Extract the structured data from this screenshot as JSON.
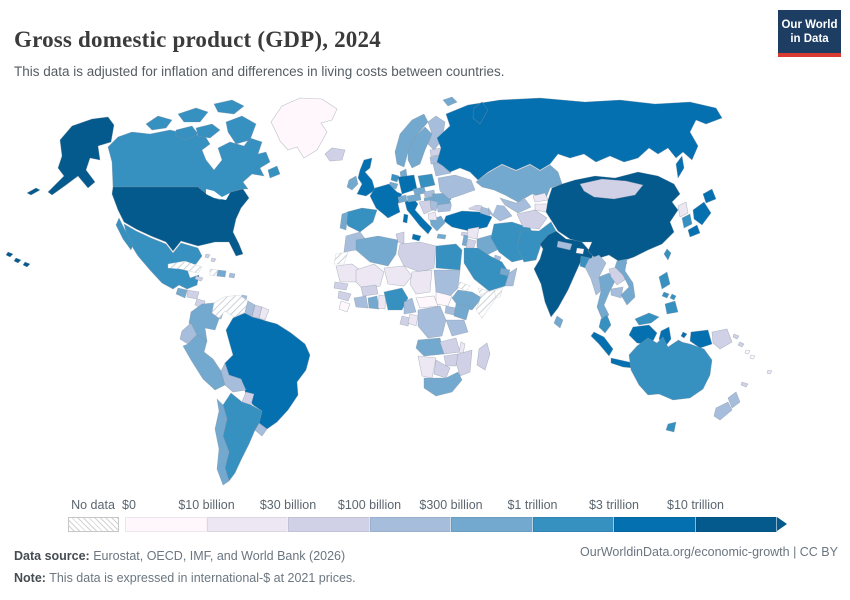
{
  "header": {
    "title": "Gross domestic product (GDP), 2024",
    "subtitle": "This data is adjusted for inflation and differences in living costs between countries.",
    "logo": {
      "line1": "Our World",
      "line2": "in Data",
      "bg_color": "#1d3d63",
      "accent_color": "#d93a32"
    }
  },
  "legend": {
    "no_data_label": "No data"
  },
  "chart_data": {
    "type": "heatmap",
    "subtype": "world-choropleth",
    "title": "Gross domestic product (GDP), 2024",
    "year": "2024",
    "unit": "international-$ at 2021 prices",
    "legend_position": "bottom",
    "open_ended_upper_bin": true,
    "bins": [
      {
        "label": "$0",
        "color": "#fff7fb"
      },
      {
        "label": "$10 billion",
        "color": "#ece7f2"
      },
      {
        "label": "$30 billion",
        "color": "#d0d1e6"
      },
      {
        "label": "$100 billion",
        "color": "#a6bddb"
      },
      {
        "label": "$300 billion",
        "color": "#74a9cf"
      },
      {
        "label": "$1 trillion",
        "color": "#3690c0"
      },
      {
        "label": "$3 trillion",
        "color": "#0570b0"
      },
      {
        "label": "$10 trillion",
        "color": "#045a8d"
      }
    ],
    "no_data_style": "hatched",
    "countries": {
      "usa": 7,
      "canada": 5,
      "greenland": 0,
      "mexico": 5,
      "guatemala": 4,
      "honduras": 2,
      "nicaragua": 2,
      "costa_rica": 3,
      "panama": 3,
      "cuba": "no_data",
      "haiti": "no_data",
      "dominican_republic": 4,
      "jamaica": 2,
      "puerto_rico": 3,
      "bahamas": 2,
      "trinidad_and_tobago": 3,
      "colombia": 4,
      "venezuela": "no_data",
      "guyana": 3,
      "suriname": 2,
      "french_guiana": 1,
      "ecuador": 3,
      "peru": 4,
      "brazil": 6,
      "bolivia": 3,
      "paraguay": 2,
      "uruguay": 3,
      "argentina": 5,
      "chile": 4,
      "iceland": 2,
      "uk": 6,
      "ireland": 4,
      "norway": 4,
      "sweden": 4,
      "finland": 3,
      "denmark": 4,
      "germany": 6,
      "netherlands": 5,
      "belgium": 4,
      "france": 6,
      "spain": 5,
      "portugal": 4,
      "italy": 6,
      "switzerland": 4,
      "austria": 4,
      "czechia": 4,
      "slovakia": 3,
      "hungary": 4,
      "poland": 5,
      "romania": 4,
      "bulgaria": 3,
      "greece": 4,
      "croatia_bosnia": 2,
      "serbia": 3,
      "albania_north_macedonia": 1,
      "ukraine": 3,
      "belarus": 3,
      "estonia_latvia": 2,
      "lithuania": 3,
      "russia": 6,
      "turkey": 6,
      "georgia": 2,
      "azerbaijan": 3,
      "cyprus": 2,
      "syria": 1,
      "israel": 4,
      "jordan": 2,
      "iraq": 4,
      "iran": 5,
      "kuwait": 3,
      "saudi_arabia": 5,
      "yemen": "no_data",
      "oman": 3,
      "uae": 4,
      "kazakhstan": 4,
      "uzbekistan": 3,
      "turkmenistan": 3,
      "kyrgyzstan": 1,
      "tajikistan": 1,
      "afghanistan": 2,
      "pakistan": 5,
      "india": 7,
      "nepal": 3,
      "bhutan": 0,
      "bangladesh": 5,
      "sri_lanka": 4,
      "myanmar": 3,
      "thailand": 4,
      "laos": 2,
      "cambodia": 3,
      "vietnam": 4,
      "malaysia": 5,
      "indonesia": 6,
      "philippines": 5,
      "china": 7,
      "mongolia": 2,
      "north_korea": 1,
      "south_korea": 5,
      "japan": 6,
      "taiwan": 5,
      "papua_new_guinea": 2,
      "solomon_islands": 0,
      "fiji": 1,
      "new_caledonia": 2,
      "australia": 5,
      "new_zealand": 3,
      "morocco": 3,
      "western_sahara": "no_data",
      "algeria": 4,
      "tunisia": 2,
      "libya": 2,
      "egypt": 5,
      "mauritania": 1,
      "mali": 1,
      "niger": 1,
      "chad": 1,
      "sudan": 3,
      "south_sudan": 0,
      "eritrea": "no_data",
      "djibouti": 0,
      "ethiopia": 4,
      "somalia": "no_data",
      "senegal": 2,
      "guinea": 2,
      "sierra_leone_liberia": 0,
      "ivory_coast": 3,
      "ghana": 4,
      "burkina_faso": 2,
      "togo_benin": 1,
      "nigeria": 5,
      "cameroon": 3,
      "central_african_republic": 0,
      "gabon": 2,
      "congo": 1,
      "dr_congo": 3,
      "uganda": 3,
      "kenya": 4,
      "tanzania": 3,
      "angola": 4,
      "zambia": 2,
      "malawi": 1,
      "mozambique": 2,
      "zimbabwe": 2,
      "botswana": 2,
      "namibia": 1,
      "south_africa": 4,
      "madagascar": 2
    }
  },
  "footer": {
    "source_label": "Data source:",
    "source_text": " Eurostat, OECD, IMF, and World Bank (2026)",
    "note_label": "Note:",
    "note_text": " This data is expressed in international-$ at 2021 prices.",
    "right_text": "OurWorldinData.org/economic-growth | CC BY"
  }
}
